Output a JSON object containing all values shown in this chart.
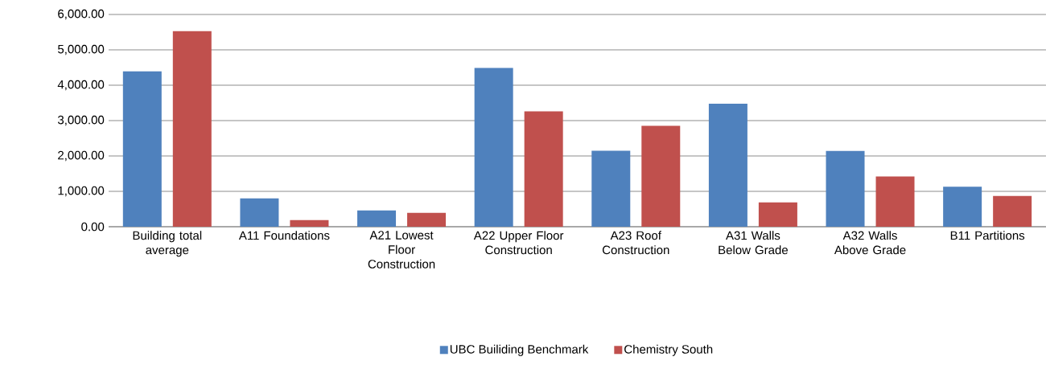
{
  "chart_data": {
    "type": "bar",
    "categories": [
      "Building total average",
      "A11 Foundations",
      "A21 Lowest Floor Construction",
      "A22 Upper Floor Construction",
      "A23 Roof Construction",
      "A31 Walls Below Grade",
      "A32 Walls Above Grade",
      "B11 Partitions"
    ],
    "series": [
      {
        "name": "UBC Builiding Benchmark",
        "color": "#4f81bd",
        "values": [
          4390,
          800,
          460,
          4490,
          2150,
          3480,
          2140,
          1130
        ]
      },
      {
        "name": "Chemistry South",
        "color": "#c0504d",
        "values": [
          5530,
          190,
          390,
          3260,
          2850,
          690,
          1420,
          870
        ]
      }
    ],
    "ylim": [
      0,
      6000
    ],
    "yticks": [
      {
        "value": 0,
        "label": "0.00"
      },
      {
        "value": 1000,
        "label": "1,000.00"
      },
      {
        "value": 2000,
        "label": "2,000.00"
      },
      {
        "value": 3000,
        "label": "3,000.00"
      },
      {
        "value": 4000,
        "label": "4,000.00"
      },
      {
        "value": 5000,
        "label": "5,000.00"
      },
      {
        "value": 6000,
        "label": "6,000.00"
      }
    ],
    "grid": "y",
    "legend": "bottom"
  }
}
